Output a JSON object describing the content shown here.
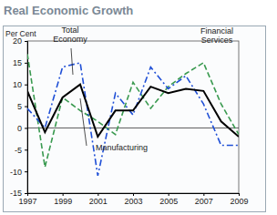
{
  "chart_data": {
    "type": "line",
    "title": "Real Economic Growth",
    "y_label": "Per Cent",
    "x": [
      1997,
      1998,
      1999,
      2000,
      2001,
      2002,
      2003,
      2004,
      2005,
      2006,
      2007,
      2008,
      2009
    ],
    "xlim": [
      1997,
      2009
    ],
    "xticks": [
      1997,
      1999,
      2001,
      2003,
      2005,
      2007,
      2009
    ],
    "ylim": [
      -15,
      20
    ],
    "yticks": [
      -15,
      -10,
      -5,
      0,
      5,
      10,
      15,
      20
    ],
    "grid": false,
    "series": [
      {
        "name": "Total Economy",
        "color": "#000000",
        "line_style": "solid",
        "values": [
          8.5,
          -1,
          7,
          10,
          -2,
          4,
          4,
          9.5,
          8,
          9,
          8.5,
          1.5,
          -2
        ]
      },
      {
        "name": "Financial Services",
        "color": "#3a9a50",
        "line_style": "dashed",
        "values": [
          17,
          -9,
          7,
          4,
          1.5,
          -1.5,
          10.5,
          4.5,
          9.5,
          12.5,
          15,
          5.5,
          -1.5
        ]
      },
      {
        "name": "Manufacturing",
        "color": "#1f4fd6",
        "line_style": "dashdot",
        "values": [
          4.5,
          0,
          14,
          15,
          -11,
          8,
          3,
          14,
          9,
          12,
          5.5,
          -4,
          -4
        ]
      }
    ]
  }
}
